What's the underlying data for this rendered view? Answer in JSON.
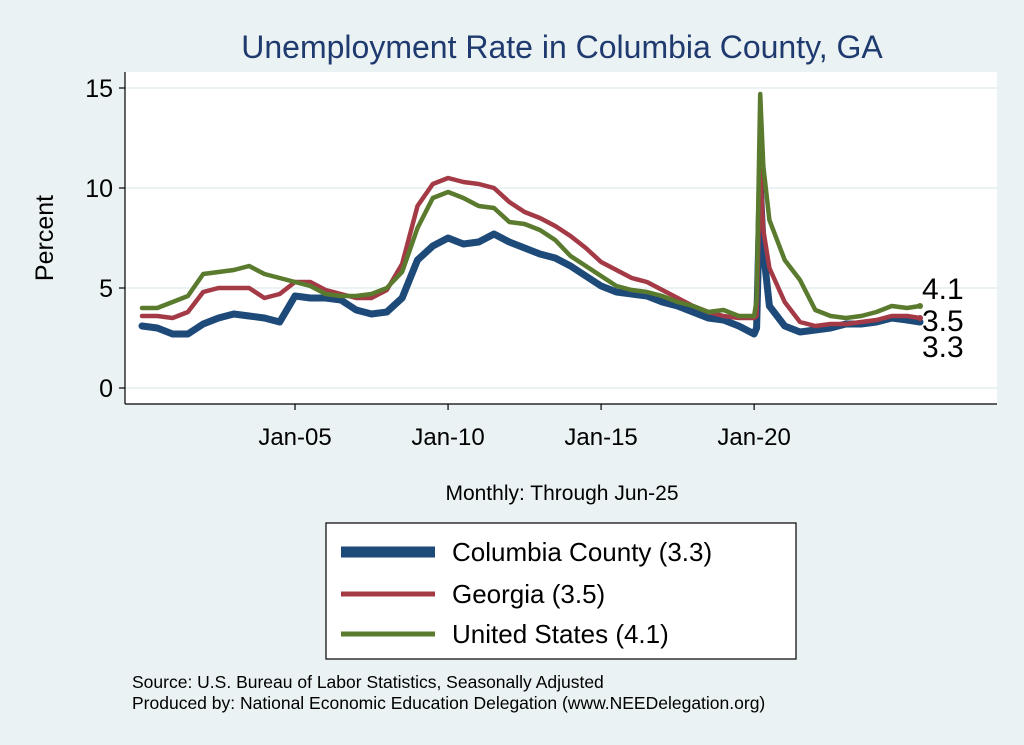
{
  "chart_data": {
    "type": "line",
    "title": "Unemployment Rate in Columbia  County, GA",
    "ylabel": "Percent",
    "xlabel": "Monthly: Through Jun-25",
    "ylim": [
      0,
      16
    ],
    "yticks": [
      0,
      5,
      10,
      15
    ],
    "xticks": [
      {
        "label": "Jan-05",
        "year": 2005
      },
      {
        "label": "Jan-10",
        "year": 2010
      },
      {
        "label": "Jan-15",
        "year": 2015
      },
      {
        "label": "Jan-20",
        "year": 2020
      }
    ],
    "x_range_years": [
      2000.0,
      2025.42
    ],
    "grid": true,
    "legend_position": "bottom",
    "series": [
      {
        "name": "Columbia  County (3.3)",
        "key": "columbia",
        "color": "#1d4a78",
        "last_value": "3.3",
        "points": [
          [
            2000.0,
            3.1
          ],
          [
            2000.5,
            3.0
          ],
          [
            2001.0,
            2.7
          ],
          [
            2001.5,
            2.7
          ],
          [
            2002.0,
            3.2
          ],
          [
            2002.5,
            3.5
          ],
          [
            2003.0,
            3.7
          ],
          [
            2003.5,
            3.6
          ],
          [
            2004.0,
            3.5
          ],
          [
            2004.5,
            3.3
          ],
          [
            2005.0,
            4.6
          ],
          [
            2005.5,
            4.5
          ],
          [
            2006.0,
            4.5
          ],
          [
            2006.5,
            4.4
          ],
          [
            2007.0,
            3.9
          ],
          [
            2007.5,
            3.7
          ],
          [
            2008.0,
            3.8
          ],
          [
            2008.5,
            4.5
          ],
          [
            2009.0,
            6.4
          ],
          [
            2009.5,
            7.1
          ],
          [
            2010.0,
            7.5
          ],
          [
            2010.5,
            7.2
          ],
          [
            2011.0,
            7.3
          ],
          [
            2011.5,
            7.7
          ],
          [
            2012.0,
            7.3
          ],
          [
            2012.5,
            7.0
          ],
          [
            2013.0,
            6.7
          ],
          [
            2013.5,
            6.5
          ],
          [
            2014.0,
            6.1
          ],
          [
            2014.5,
            5.6
          ],
          [
            2015.0,
            5.1
          ],
          [
            2015.5,
            4.8
          ],
          [
            2016.0,
            4.7
          ],
          [
            2016.5,
            4.6
          ],
          [
            2017.0,
            4.3
          ],
          [
            2017.5,
            4.1
          ],
          [
            2018.0,
            3.8
          ],
          [
            2018.5,
            3.5
          ],
          [
            2019.0,
            3.4
          ],
          [
            2019.5,
            3.1
          ],
          [
            2020.0,
            2.7
          ],
          [
            2020.08,
            3.0
          ],
          [
            2020.2,
            10.2
          ],
          [
            2020.3,
            6.9
          ],
          [
            2020.5,
            4.1
          ],
          [
            2021.0,
            3.1
          ],
          [
            2021.5,
            2.8
          ],
          [
            2022.0,
            2.9
          ],
          [
            2022.5,
            3.0
          ],
          [
            2023.0,
            3.2
          ],
          [
            2023.5,
            3.2
          ],
          [
            2024.0,
            3.3
          ],
          [
            2024.5,
            3.5
          ],
          [
            2025.0,
            3.4
          ],
          [
            2025.42,
            3.3
          ]
        ]
      },
      {
        "name": "Georgia (3.5)",
        "key": "georgia",
        "color": "#a33a45",
        "last_value": "3.5",
        "points": [
          [
            2000.0,
            3.6
          ],
          [
            2000.5,
            3.6
          ],
          [
            2001.0,
            3.5
          ],
          [
            2001.5,
            3.8
          ],
          [
            2002.0,
            4.8
          ],
          [
            2002.5,
            5.0
          ],
          [
            2003.0,
            5.0
          ],
          [
            2003.5,
            5.0
          ],
          [
            2004.0,
            4.5
          ],
          [
            2004.5,
            4.7
          ],
          [
            2005.0,
            5.3
          ],
          [
            2005.5,
            5.3
          ],
          [
            2006.0,
            4.9
          ],
          [
            2006.5,
            4.7
          ],
          [
            2007.0,
            4.5
          ],
          [
            2007.5,
            4.5
          ],
          [
            2008.0,
            4.9
          ],
          [
            2008.5,
            6.2
          ],
          [
            2009.0,
            9.1
          ],
          [
            2009.5,
            10.2
          ],
          [
            2010.0,
            10.5
          ],
          [
            2010.5,
            10.3
          ],
          [
            2011.0,
            10.2
          ],
          [
            2011.5,
            10.0
          ],
          [
            2012.0,
            9.3
          ],
          [
            2012.5,
            8.8
          ],
          [
            2013.0,
            8.5
          ],
          [
            2013.5,
            8.1
          ],
          [
            2014.0,
            7.6
          ],
          [
            2014.5,
            7.0
          ],
          [
            2015.0,
            6.3
          ],
          [
            2015.5,
            5.9
          ],
          [
            2016.0,
            5.5
          ],
          [
            2016.5,
            5.3
          ],
          [
            2017.0,
            4.9
          ],
          [
            2017.5,
            4.5
          ],
          [
            2018.0,
            4.1
          ],
          [
            2018.5,
            3.8
          ],
          [
            2019.0,
            3.6
          ],
          [
            2019.5,
            3.5
          ],
          [
            2020.0,
            3.5
          ],
          [
            2020.08,
            3.6
          ],
          [
            2020.2,
            10.9
          ],
          [
            2020.3,
            7.9
          ],
          [
            2020.5,
            6.0
          ],
          [
            2021.0,
            4.3
          ],
          [
            2021.5,
            3.3
          ],
          [
            2022.0,
            3.1
          ],
          [
            2022.5,
            3.2
          ],
          [
            2023.0,
            3.2
          ],
          [
            2023.5,
            3.3
          ],
          [
            2024.0,
            3.4
          ],
          [
            2024.5,
            3.6
          ],
          [
            2025.0,
            3.6
          ],
          [
            2025.42,
            3.5
          ]
        ]
      },
      {
        "name": "United States (4.1)",
        "key": "us",
        "color": "#5a7a2e",
        "last_value": "4.1",
        "points": [
          [
            2000.0,
            4.0
          ],
          [
            2000.5,
            4.0
          ],
          [
            2001.0,
            4.3
          ],
          [
            2001.5,
            4.6
          ],
          [
            2002.0,
            5.7
          ],
          [
            2002.5,
            5.8
          ],
          [
            2003.0,
            5.9
          ],
          [
            2003.5,
            6.1
          ],
          [
            2004.0,
            5.7
          ],
          [
            2004.5,
            5.5
          ],
          [
            2005.0,
            5.3
          ],
          [
            2005.5,
            5.1
          ],
          [
            2006.0,
            4.7
          ],
          [
            2006.5,
            4.6
          ],
          [
            2007.0,
            4.6
          ],
          [
            2007.5,
            4.7
          ],
          [
            2008.0,
            5.0
          ],
          [
            2008.5,
            5.8
          ],
          [
            2009.0,
            8.0
          ],
          [
            2009.5,
            9.5
          ],
          [
            2010.0,
            9.8
          ],
          [
            2010.5,
            9.5
          ],
          [
            2011.0,
            9.1
          ],
          [
            2011.5,
            9.0
          ],
          [
            2012.0,
            8.3
          ],
          [
            2012.5,
            8.2
          ],
          [
            2013.0,
            7.9
          ],
          [
            2013.5,
            7.4
          ],
          [
            2014.0,
            6.6
          ],
          [
            2014.5,
            6.1
          ],
          [
            2015.0,
            5.6
          ],
          [
            2015.5,
            5.1
          ],
          [
            2016.0,
            4.9
          ],
          [
            2016.5,
            4.8
          ],
          [
            2017.0,
            4.6
          ],
          [
            2017.5,
            4.3
          ],
          [
            2018.0,
            4.1
          ],
          [
            2018.5,
            3.8
          ],
          [
            2019.0,
            3.9
          ],
          [
            2019.5,
            3.6
          ],
          [
            2020.0,
            3.6
          ],
          [
            2020.08,
            4.4
          ],
          [
            2020.2,
            14.7
          ],
          [
            2020.3,
            11.1
          ],
          [
            2020.5,
            8.4
          ],
          [
            2021.0,
            6.4
          ],
          [
            2021.5,
            5.4
          ],
          [
            2022.0,
            3.9
          ],
          [
            2022.5,
            3.6
          ],
          [
            2023.0,
            3.5
          ],
          [
            2023.5,
            3.6
          ],
          [
            2024.0,
            3.8
          ],
          [
            2024.5,
            4.1
          ],
          [
            2025.0,
            4.0
          ],
          [
            2025.42,
            4.1
          ]
        ]
      }
    ]
  },
  "footer": {
    "source": "Source: U.S. Bureau of Labor Statistics, Seasonally Adjusted",
    "produced_by": "Produced by: National Economic Education Delegation (www.NEEDelegation.org)"
  }
}
